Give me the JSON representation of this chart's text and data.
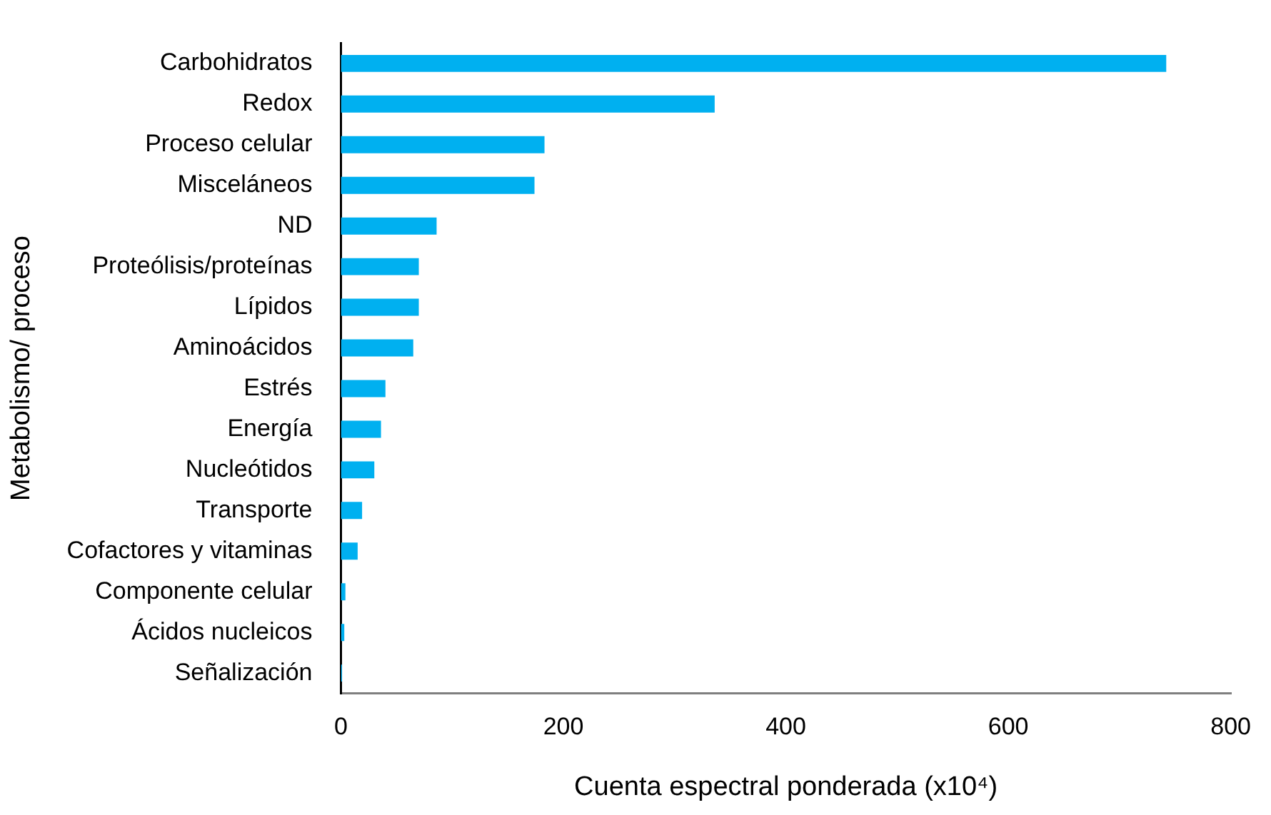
{
  "chart_data": {
    "type": "bar",
    "orientation": "horizontal",
    "xlabel": "Cuenta espectral ponderada (x10⁴)",
    "ylabel": "Metabolismo/ proceso",
    "categories": [
      "Carbohidratos",
      "Redox",
      "Proceso celular",
      "Misceláneos",
      "ND",
      "Proteólisis/proteínas",
      "Lípidos",
      "Aminoácidos",
      "Estrés",
      "Energía",
      "Nucleótidos",
      "Transporte",
      "Cofactores y vitaminas",
      "Componente celular",
      "Ácidos nucleicos",
      "Señalización"
    ],
    "values": [
      742,
      336,
      183,
      174,
      86,
      70,
      70,
      65,
      40,
      36,
      30,
      19,
      15,
      4,
      3,
      1
    ],
    "color": "#00b0f0",
    "xlim": [
      0,
      800
    ],
    "xticks": [
      0,
      200,
      400,
      600,
      800
    ],
    "grid": false,
    "legend": false
  }
}
